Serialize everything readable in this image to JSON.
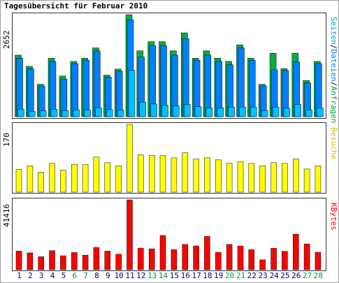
{
  "chart_data": {
    "type": "bar",
    "title": "Tagesübersicht für Februar 2010",
    "categories": [
      "1",
      "2",
      "3",
      "4",
      "5",
      "6",
      "7",
      "8",
      "9",
      "10",
      "11",
      "12",
      "13",
      "14",
      "15",
      "16",
      "17",
      "18",
      "19",
      "20",
      "21",
      "22",
      "23",
      "24",
      "25",
      "26",
      "27",
      "28"
    ],
    "weekend_days": [
      "6",
      "7",
      "13",
      "14",
      "20",
      "21",
      "27",
      "28"
    ],
    "panels": [
      {
        "id": "requests",
        "ymax_label": "2652",
        "ymax": 2652,
        "legend_parts": [
          {
            "text": "Seiten",
            "color": "#00a0c8"
          },
          {
            "text": "/",
            "color": "#000000"
          },
          {
            "text": "Dateien",
            "color": "#0080ff"
          },
          {
            "text": "/",
            "color": "#000000"
          },
          {
            "text": "Anfragen",
            "color": "#00a040"
          }
        ],
        "series": [
          {
            "name": "Anfragen",
            "color": "#00b040",
            "values": [
              1600,
              1310,
              843,
              1520,
              1057,
              1437,
              1520,
              1790,
              1080,
              1237,
              2652,
              1713,
              1950,
              1950,
              1713,
              2180,
              1520,
              1713,
              1520,
              1437,
              1870,
              1520,
              843,
              1650,
              1250,
              1650,
              943,
              1437
            ]
          },
          {
            "name": "Dateien",
            "color": "#0080ff",
            "values": [
              1520,
              1250,
              800,
              1437,
              980,
              1380,
              1470,
              1713,
              1030,
              1180,
              2520,
              1550,
              1850,
              1850,
              1600,
              2030,
              1470,
              1600,
              1437,
              1350,
              1790,
              1470,
              800,
              1220,
              1200,
              1420,
              880,
              1380
            ]
          },
          {
            "name": "Seiten",
            "color": "#00c0ff",
            "values": [
              200,
              140,
              150,
              190,
              160,
              180,
              180,
              230,
              190,
              170,
              1200,
              380,
              330,
              300,
              280,
              320,
              260,
              230,
              230,
              250,
              250,
              250,
              160,
              250,
              220,
              320,
              180,
              230
            ]
          }
        ]
      },
      {
        "id": "visits",
        "ymax_label": "170",
        "ymax": 170,
        "legend_parts": [
          {
            "text": "Besuche",
            "color": "#d4c000"
          }
        ],
        "series": [
          {
            "name": "Besuche",
            "color": "#ffff00",
            "values": [
              57,
              66,
              50,
              72,
              55,
              70,
              69,
              88,
              74,
              66,
              170,
              94,
              92,
              92,
              86,
              99,
              83,
              86,
              81,
              72,
              76,
              72,
              66,
              74,
              72,
              83,
              58,
              66
            ]
          }
        ]
      },
      {
        "id": "bytes",
        "ymax_label": "41416",
        "ymax": 41416,
        "legend_parts": [
          {
            "text": "KBytes",
            "color": "#ff0000"
          }
        ],
        "series": [
          {
            "name": "KBytes",
            "color": "#ff0000",
            "values": [
              11000,
              10000,
              7700,
              11300,
              8300,
              10200,
              8600,
              13200,
              11000,
              9200,
              41416,
              12800,
              12400,
              20300,
              11900,
              15000,
              14100,
              19700,
              10300,
              15000,
              14100,
              11900,
              5900,
              12800,
              10900,
              21100,
              15300,
              10300
            ]
          }
        ]
      }
    ]
  }
}
